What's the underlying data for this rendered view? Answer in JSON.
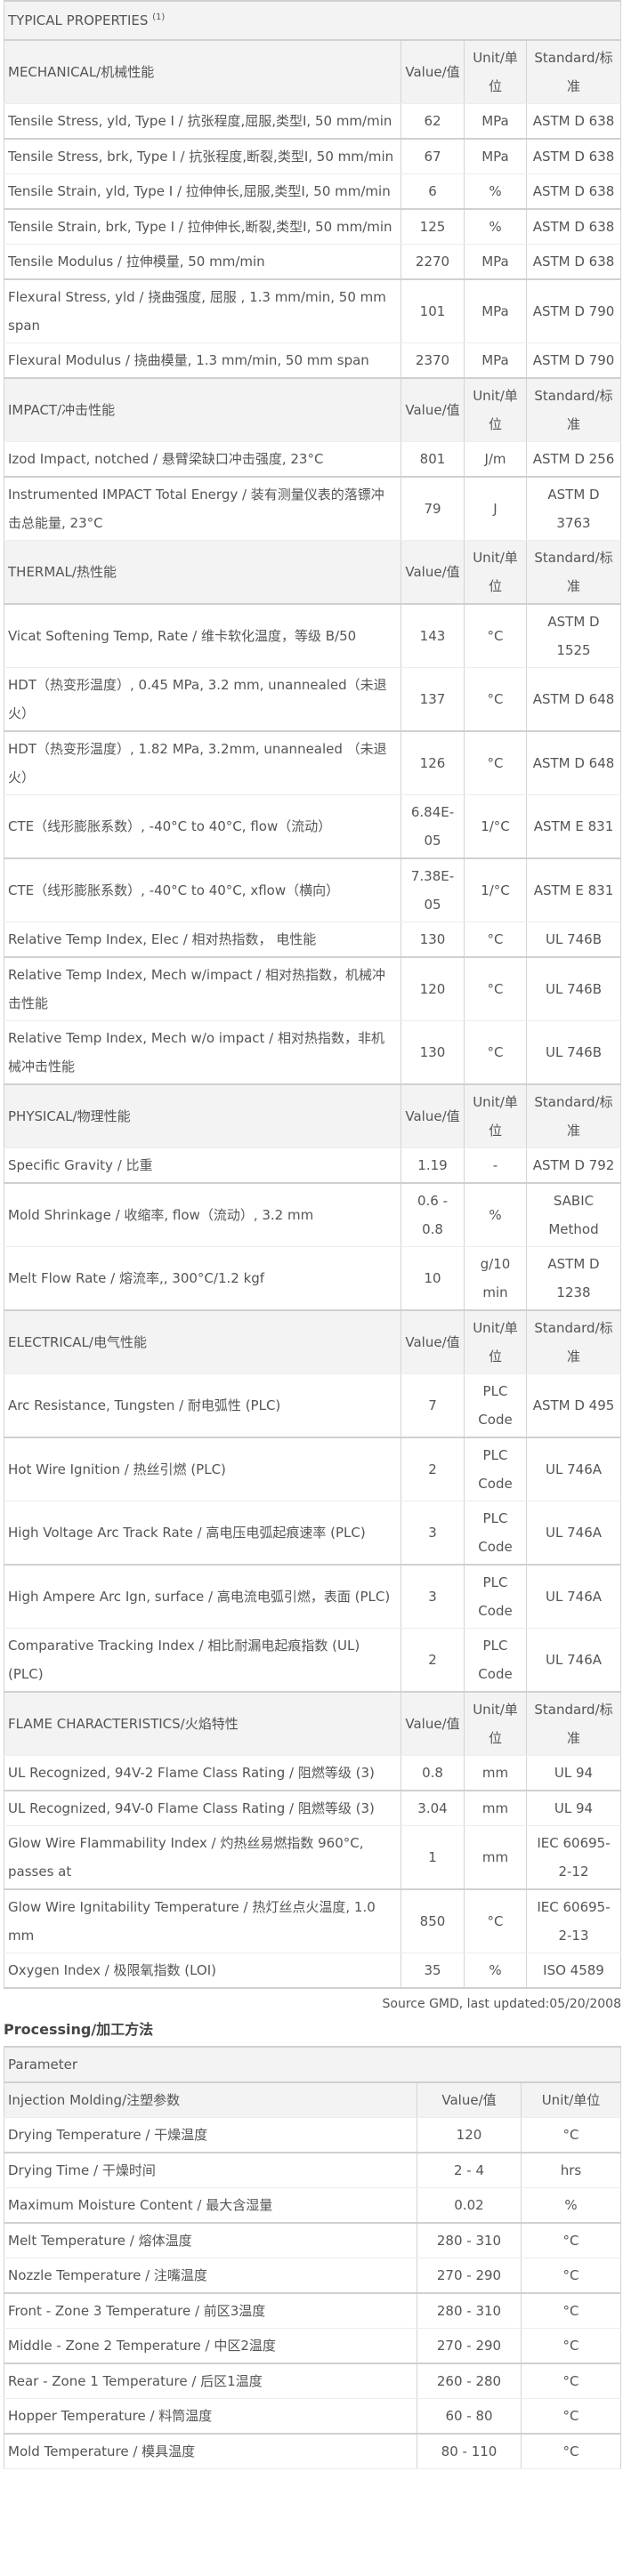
{
  "typical": {
    "title": "TYPICAL PROPERTIES",
    "superscript": "(1)",
    "columns": {
      "value": "Value/值",
      "unit": "Unit/单位",
      "standard": "Standard/标准"
    },
    "sections": [
      {
        "label": "MECHANICAL/机械性能",
        "rows": [
          {
            "property": "Tensile Stress, yld, Type I / 抗张程度,屈服,类型I, 50 mm/min",
            "value": "62",
            "unit": "MPa",
            "standard": "ASTM D 638"
          },
          {
            "property": "Tensile Stress, brk, Type I / 抗张程度,断裂,类型I, 50 mm/min",
            "value": "67",
            "unit": "MPa",
            "standard": "ASTM D 638"
          },
          {
            "property": "Tensile Strain, yld, Type I / 拉伸伸长,屈服,类型I, 50 mm/min",
            "value": "6",
            "unit": "%",
            "standard": "ASTM D 638"
          },
          {
            "property": "Tensile Strain, brk, Type I / 拉伸伸长,断裂,类型I, 50 mm/min",
            "value": "125",
            "unit": "%",
            "standard": "ASTM D 638"
          },
          {
            "property": "Tensile Modulus / 拉伸模量, 50 mm/min",
            "value": "2270",
            "unit": "MPa",
            "standard": "ASTM D 638"
          },
          {
            "property": "Flexural Stress, yld / 挠曲强度, 屈服 , 1.3 mm/min, 50 mm span",
            "value": "101",
            "unit": "MPa",
            "standard": "ASTM D 790"
          },
          {
            "property": "Flexural Modulus / 挠曲模量, 1.3 mm/min, 50 mm span",
            "value": "2370",
            "unit": "MPa",
            "standard": "ASTM D 790"
          }
        ]
      },
      {
        "label": "IMPACT/冲击性能",
        "rows": [
          {
            "property": "Izod Impact, notched / 悬臂梁缺口冲击强度, 23°C",
            "value": "801",
            "unit": "J/m",
            "standard": "ASTM D 256"
          },
          {
            "property": "Instrumented IMPACT Total Energy / 装有测量仪表的落镖冲击总能量, 23°C",
            "value": "79",
            "unit": "J",
            "standard": "ASTM D 3763"
          }
        ]
      },
      {
        "label": "THERMAL/热性能",
        "rows": [
          {
            "property": "Vicat Softening Temp, Rate / 维卡软化温度，等级 B/50",
            "value": "143",
            "unit": "°C",
            "standard": "ASTM D 1525"
          },
          {
            "property": "HDT（热变形温度）, 0.45 MPa, 3.2 mm, unannealed（未退火）",
            "value": "137",
            "unit": "°C",
            "standard": "ASTM D 648"
          },
          {
            "property": "HDT（热变形温度）, 1.82 MPa, 3.2mm, unannealed （未退火）",
            "value": "126",
            "unit": "°C",
            "standard": "ASTM D 648"
          },
          {
            "property": "CTE（线形膨胀系数）, -40°C to 40°C, flow（流动）",
            "value": "6.84E-05",
            "unit": "1/°C",
            "standard": "ASTM E 831"
          },
          {
            "property": "CTE（线形膨胀系数）, -40°C to 40°C, xflow（横向）",
            "value": "7.38E-05",
            "unit": "1/°C",
            "standard": "ASTM E 831"
          },
          {
            "property": "Relative Temp Index, Elec / 相对热指数， 电性能",
            "value": "130",
            "unit": "°C",
            "standard": "UL 746B"
          },
          {
            "property": "Relative Temp Index, Mech w/impact / 相对热指数，机械冲击性能",
            "value": "120",
            "unit": "°C",
            "standard": "UL 746B"
          },
          {
            "property": "Relative Temp Index, Mech w/o impact / 相对热指数，非机械冲击性能",
            "value": "130",
            "unit": "°C",
            "standard": "UL 746B"
          }
        ]
      },
      {
        "label": "PHYSICAL/物理性能",
        "rows": [
          {
            "property": "Specific Gravity / 比重",
            "value": "1.19",
            "unit": "-",
            "standard": "ASTM D 792"
          },
          {
            "property": "Mold Shrinkage / 收缩率, flow（流动）, 3.2 mm",
            "value": "0.6 - 0.8",
            "unit": "%",
            "standard": "SABIC Method"
          },
          {
            "property": "Melt Flow Rate / 熔流率,, 300°C/1.2 kgf",
            "value": "10",
            "unit": "g/10 min",
            "standard": "ASTM D 1238"
          }
        ]
      },
      {
        "label": "ELECTRICAL/电气性能",
        "rows": [
          {
            "property": "Arc Resistance, Tungsten / 耐电弧性 (PLC)",
            "value": "7",
            "unit": "PLC Code",
            "standard": "ASTM D 495"
          },
          {
            "property": "Hot Wire Ignition / 热丝引燃 (PLC)",
            "value": "2",
            "unit": "PLC Code",
            "standard": "UL 746A"
          },
          {
            "property": "High Voltage Arc Track Rate / 高电压电弧起痕速率 (PLC)",
            "value": "3",
            "unit": "PLC Code",
            "standard": "UL 746A"
          },
          {
            "property": "High Ampere Arc Ign, surface / 高电流电弧引燃，表面 (PLC)",
            "value": "3",
            "unit": "PLC Code",
            "standard": "UL 746A"
          },
          {
            "property": "Comparative Tracking Index / 相比耐漏电起痕指数 (UL) (PLC)",
            "value": "2",
            "unit": "PLC Code",
            "standard": "UL 746A"
          }
        ]
      },
      {
        "label": "FLAME CHARACTERISTICS/火焰特性",
        "rows": [
          {
            "property": "UL Recognized, 94V-2 Flame Class Rating / 阻燃等级 (3)",
            "value": "0.8",
            "unit": "mm",
            "standard": "UL 94"
          },
          {
            "property": "UL Recognized, 94V-0 Flame Class Rating / 阻燃等级 (3)",
            "value": "3.04",
            "unit": "mm",
            "standard": "UL 94"
          },
          {
            "property": "Glow Wire Flammability Index / 灼热丝易燃指数 960°C, passes at",
            "value": "1",
            "unit": "mm",
            "standard": "IEC 60695-2-12"
          },
          {
            "property": "Glow Wire Ignitability Temperature / 热灯丝点火温度, 1.0 mm",
            "value": "850",
            "unit": "°C",
            "standard": "IEC 60695-2-13"
          },
          {
            "property": "Oxygen Index / 极限氧指数 (LOI)",
            "value": "35",
            "unit": "%",
            "standard": "ISO 4589"
          }
        ]
      }
    ],
    "source_note": "Source GMD, last updated:05/20/2008"
  },
  "processing": {
    "title": "Processing/加工方法",
    "parameter_label": "Parameter",
    "header": {
      "label": "Injection Molding/注塑参数",
      "value": "Value/值",
      "unit": "Unit/单位"
    },
    "rows": [
      {
        "property": "Drying Temperature / 干燥温度",
        "value": "120",
        "unit": "°C"
      },
      {
        "property": "Drying Time / 干燥时间",
        "value": "2 - 4",
        "unit": "hrs"
      },
      {
        "property": "Maximum Moisture Content / 最大含湿量",
        "value": "0.02",
        "unit": "%"
      },
      {
        "property": "Melt Temperature / 熔体温度",
        "value": "280 - 310",
        "unit": "°C"
      },
      {
        "property": "Nozzle Temperature / 注嘴温度",
        "value": "270 - 290",
        "unit": "°C"
      },
      {
        "property": "Front - Zone 3 Temperature / 前区3温度",
        "value": "280 - 310",
        "unit": "°C"
      },
      {
        "property": "Middle - Zone 2 Temperature / 中区2温度",
        "value": "270 - 290",
        "unit": "°C"
      },
      {
        "property": "Rear - Zone 1 Temperature / 后区1温度",
        "value": "260 - 280",
        "unit": "°C"
      },
      {
        "property": "Hopper Temperature / 料筒温度",
        "value": "60 - 80",
        "unit": "°C"
      },
      {
        "property": "Mold Temperature / 模具温度",
        "value": "80 - 110",
        "unit": "°C"
      }
    ]
  }
}
